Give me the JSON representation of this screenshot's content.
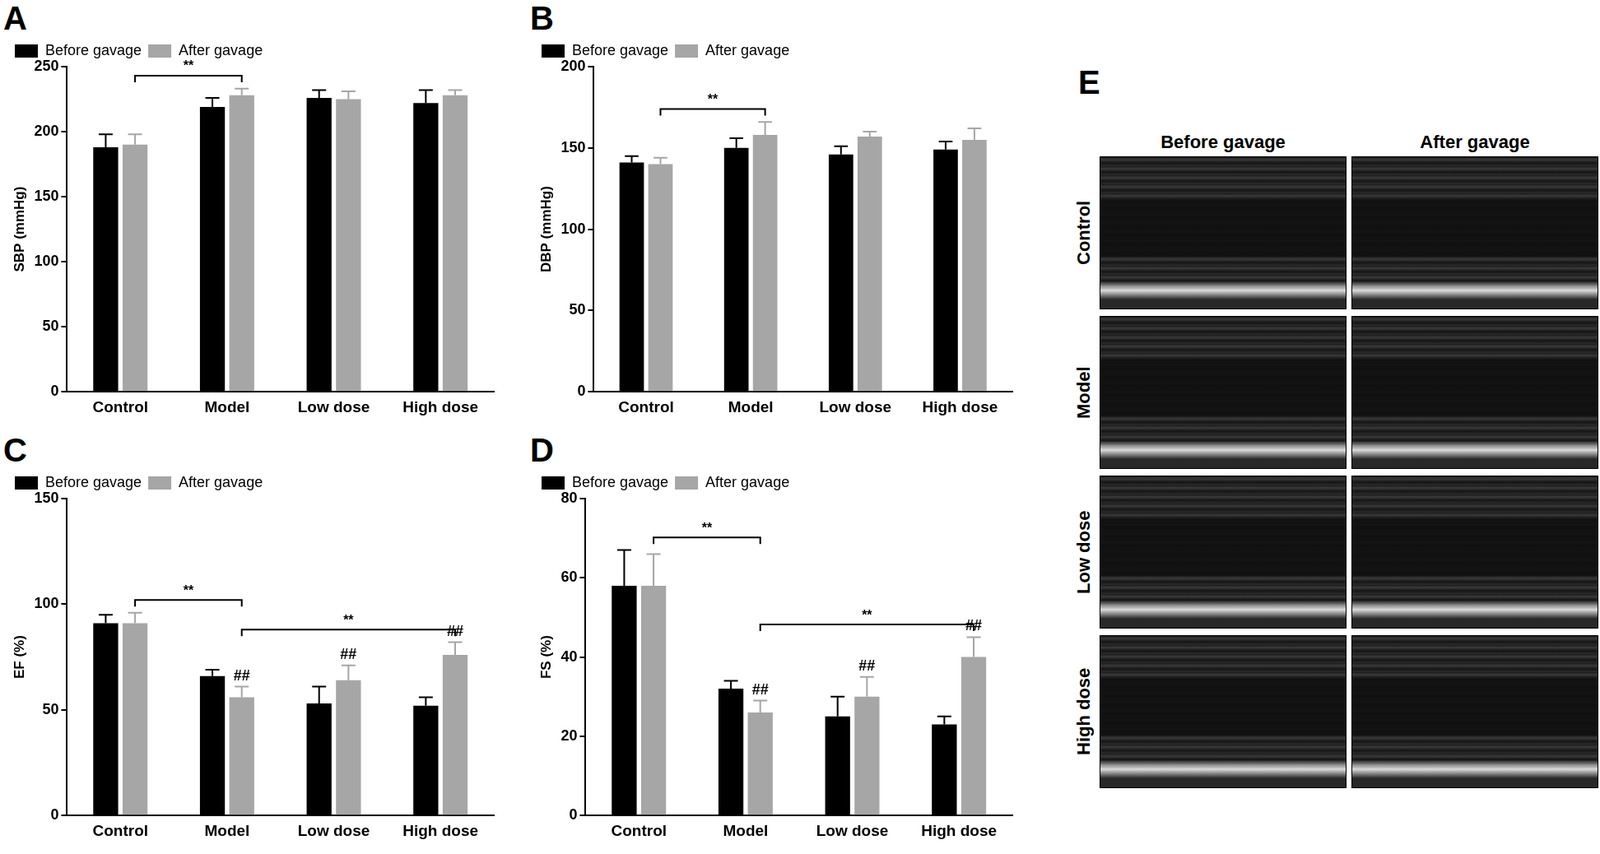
{
  "chart_data": [
    {
      "panel_label": "A",
      "type": "bar",
      "categories": [
        "Control",
        "Model",
        "Low dose",
        "High dose"
      ],
      "ylabel": "SBP (mmHg)",
      "series": [
        {
          "name": "Before gavage",
          "color": "#000000",
          "values": [
            188,
            219,
            226,
            222
          ],
          "errors": [
            10,
            7,
            6,
            10
          ]
        },
        {
          "name": "After gavage",
          "color": "#a6a6a6",
          "values": [
            190,
            228,
            225,
            228
          ],
          "errors": [
            8,
            5,
            6,
            4
          ]
        }
      ],
      "ylim": [
        0,
        250
      ],
      "yticks": [
        0,
        50,
        100,
        150,
        200,
        250
      ],
      "grid": false,
      "legend": "top-left",
      "annotations": [
        {
          "from": "Control",
          "to": "Model",
          "label": "**"
        }
      ]
    },
    {
      "panel_label": "B",
      "type": "bar",
      "categories": [
        "Control",
        "Model",
        "Low dose",
        "High dose"
      ],
      "ylabel": "DBP (mmHg)",
      "series": [
        {
          "name": "Before gavage",
          "color": "#000000",
          "values": [
            141,
            150,
            146,
            149
          ],
          "errors": [
            4,
            6,
            5,
            5
          ]
        },
        {
          "name": "After gavage",
          "color": "#a6a6a6",
          "values": [
            140,
            158,
            157,
            155
          ],
          "errors": [
            4,
            8,
            3,
            7
          ]
        }
      ],
      "ylim": [
        0,
        200
      ],
      "yticks": [
        0,
        50,
        100,
        150,
        200
      ],
      "grid": false,
      "legend": "top-left",
      "annotations": [
        {
          "from": "Control",
          "to": "Model",
          "label": "**"
        }
      ]
    },
    {
      "panel_label": "C",
      "type": "bar",
      "categories": [
        "Control",
        "Model",
        "Low dose",
        "High dose"
      ],
      "ylabel": "EF (%)",
      "series": [
        {
          "name": "Before gavage",
          "color": "#000000",
          "values": [
            91,
            66,
            53,
            52
          ],
          "errors": [
            4,
            3,
            8,
            4
          ]
        },
        {
          "name": "After gavage",
          "color": "#a6a6a6",
          "values": [
            91,
            56,
            64,
            76
          ],
          "errors": [
            5,
            5,
            7,
            6
          ],
          "marks": [
            null,
            "##",
            "##",
            "##"
          ]
        }
      ],
      "ylim": [
        0,
        150
      ],
      "yticks": [
        0,
        50,
        100,
        150
      ],
      "grid": false,
      "legend": "top-left",
      "annotations": [
        {
          "from": "Control",
          "to": "Model",
          "label": "**"
        },
        {
          "from": "Model",
          "to": "High dose",
          "label": "**"
        }
      ]
    },
    {
      "panel_label": "D",
      "type": "bar",
      "categories": [
        "Control",
        "Model",
        "Low dose",
        "High dose"
      ],
      "ylabel": "FS (%)",
      "series": [
        {
          "name": "Before gavage",
          "color": "#000000",
          "values": [
            58,
            32,
            25,
            23
          ],
          "errors": [
            9,
            2,
            5,
            2
          ]
        },
        {
          "name": "After gavage",
          "color": "#a6a6a6",
          "values": [
            58,
            26,
            30,
            40
          ],
          "errors": [
            8,
            3,
            5,
            5
          ],
          "marks": [
            null,
            "##",
            "##",
            "##"
          ]
        }
      ],
      "ylim": [
        0,
        80
      ],
      "yticks": [
        0,
        20,
        40,
        60,
        80
      ],
      "grid": false,
      "legend": "top-left",
      "annotations": [
        {
          "from": "Control",
          "to": "Model",
          "label": "**"
        },
        {
          "from": "Model",
          "to": "High dose",
          "label": "**"
        }
      ]
    }
  ],
  "image_panel": {
    "panel_label": "E",
    "columns": [
      "Before gavage",
      "After gavage"
    ],
    "rows": [
      "Control",
      "Model",
      "Low dose",
      "High dose"
    ]
  }
}
